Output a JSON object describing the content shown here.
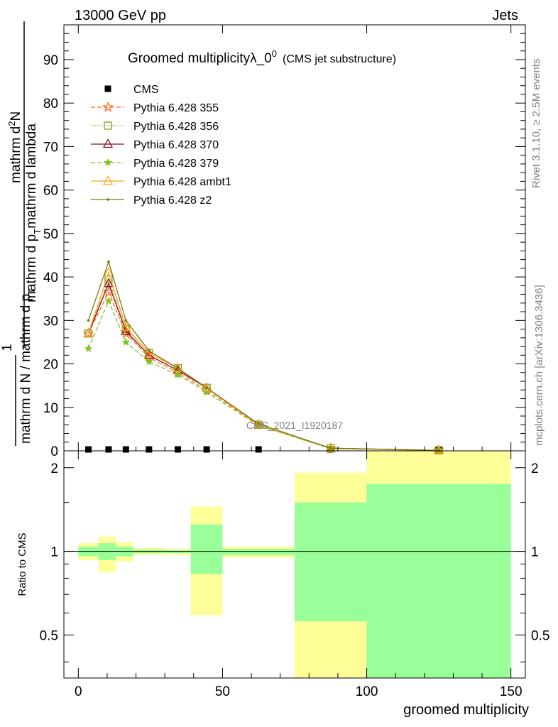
{
  "header": {
    "energy_label": "13000 GeV pp",
    "category_label": "Jets"
  },
  "side_labels": {
    "rivet": "Rivet 3.1.10, ≥ 2.5M events",
    "mcplots": "mcplots.cern.ch [arXiv:1306.3436]"
  },
  "watermark": "CMS_2021_I1920187",
  "colors": {
    "yellow_band": "#ffff99",
    "green_band": "#99ff99",
    "cms": "#000000"
  },
  "chart_data": [
    {
      "type": "line",
      "title_main": "Groomed multiplicityλ_0",
      "title_sup": "0",
      "title_sub": "(CMS jet substructure)",
      "ylabel_left": "mathrm d N / mathrm d p",
      "ylabel_left_sub": "T",
      "ylabel_left_rest": "mathrm d lambda",
      "ylabel_prefix": "1",
      "ylabel_num_a": "mathrm d",
      "ylabel_num_sup": "2",
      "ylabel_num_b": "N",
      "ylabel_den_a": "mathrm d N / mathrm d p",
      "ylabel_den_sub": "T",
      "ylabel_den_b": "mathrm d p",
      "ylabel_den_sub2": "T",
      "ylabel_den_c": "mathrm d lambda",
      "xlim": [
        -5,
        155
      ],
      "ylim": [
        0,
        98
      ],
      "y_ticks": [
        0,
        10,
        20,
        30,
        40,
        50,
        60,
        70,
        80,
        90
      ],
      "legend_position": "top-left",
      "x": [
        3.5,
        10.5,
        16.5,
        24.5,
        34.5,
        44.5,
        62.5,
        87.5,
        125
      ],
      "series": [
        {
          "name": "CMS",
          "color": "#000000",
          "marker": "square",
          "values": [
            0.1,
            0.1,
            0.1,
            0.1,
            0.1,
            0.1,
            0.1,
            0.1,
            0.1
          ]
        },
        {
          "name": "Pythia 6.428 355",
          "color": "#ff6a1a",
          "marker": "star",
          "dash": "6,3",
          "values": [
            27.0,
            36.5,
            27.0,
            21.5,
            18.0,
            14.0,
            6.0,
            0.5,
            0.1
          ]
        },
        {
          "name": "Pythia 6.428 356",
          "color": "#7aa318",
          "marker": "square-open",
          "dash": "1,2",
          "values": [
            27.0,
            39.5,
            28.0,
            22.5,
            19.0,
            14.5,
            6.0,
            0.6,
            0.1
          ]
        },
        {
          "name": "Pythia 6.428 370",
          "color": "#8b0a1a",
          "marker": "triangle-open",
          "dash": "",
          "values": [
            27.0,
            38.5,
            27.5,
            22.0,
            18.5,
            14.5,
            6.0,
            0.6,
            0.1
          ]
        },
        {
          "name": "Pythia 6.428 379",
          "color": "#7fc41a",
          "marker": "star-small",
          "dash": "6,3",
          "values": [
            23.5,
            34.5,
            25.0,
            20.5,
            17.5,
            13.5,
            5.8,
            0.5,
            0.1
          ]
        },
        {
          "name": "Pythia 6.428 ambt1",
          "color": "#f5a623",
          "marker": "triangle-open",
          "dash": "",
          "values": [
            27.0,
            41.0,
            28.5,
            22.5,
            19.0,
            14.5,
            6.0,
            0.6,
            0.1
          ]
        },
        {
          "name": "Pythia 6.428 z2",
          "color": "#7a7a10",
          "marker": "dot",
          "dash": "",
          "values": [
            30.0,
            43.5,
            30.0,
            23.0,
            19.0,
            14.5,
            6.2,
            0.6,
            0.1
          ]
        }
      ]
    },
    {
      "type": "area",
      "ylabel": "Ratio to CMS",
      "xlabel": "groomed multiplicity",
      "xlim": [
        -5,
        155
      ],
      "ylim": [
        0.35,
        2.3
      ],
      "y_scale": "log",
      "y_ticks": [
        0.5,
        1,
        2
      ],
      "x_ticks": [
        0,
        50,
        100,
        150
      ],
      "reference_line": 1,
      "bins": [
        {
          "lo": 0,
          "hi": 7,
          "yellow": [
            0.93,
            1.07
          ],
          "green": [
            0.96,
            1.04
          ]
        },
        {
          "lo": 7,
          "hi": 13,
          "yellow": [
            0.84,
            1.13
          ],
          "green": [
            0.93,
            1.07
          ]
        },
        {
          "lo": 13,
          "hi": 19,
          "yellow": [
            0.92,
            1.08
          ],
          "green": [
            0.96,
            1.04
          ]
        },
        {
          "lo": 19,
          "hi": 30,
          "yellow": [
            0.97,
            1.03
          ],
          "green": [
            0.985,
            1.015
          ]
        },
        {
          "lo": 30,
          "hi": 39,
          "yellow": [
            0.97,
            1.02
          ],
          "green": [
            0.985,
            1.01
          ]
        },
        {
          "lo": 39,
          "hi": 50,
          "yellow": [
            0.59,
            1.45
          ],
          "green": [
            0.83,
            1.25
          ]
        },
        {
          "lo": 50,
          "hi": 75,
          "yellow": [
            0.95,
            1.04
          ],
          "green": [
            0.97,
            1.02
          ]
        },
        {
          "lo": 75,
          "hi": 100,
          "yellow": [
            0.35,
            1.92
          ],
          "green": [
            0.56,
            1.5
          ]
        },
        {
          "lo": 100,
          "hi": 150,
          "yellow": [
            0.35,
            2.3
          ],
          "green": [
            0.35,
            1.75
          ]
        }
      ]
    }
  ]
}
